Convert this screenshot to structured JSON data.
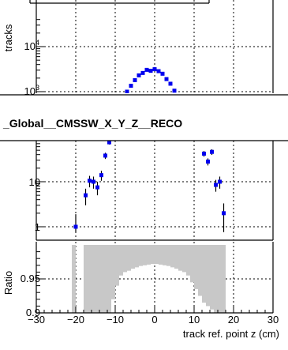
{
  "title": "_Global__CMSSW_X_Y_Z__RECO",
  "top_panel": {
    "ylabel": "tracks",
    "ytick_labels": [
      {
        "base": "10",
        "exp": "4",
        "value": 10000
      },
      {
        "base": "10",
        "exp": "3",
        "value": 1000
      }
    ]
  },
  "mid_panel": {
    "ytick_labels": [
      {
        "text": "10",
        "value": 10
      },
      {
        "text": "1",
        "value": 1
      }
    ]
  },
  "ratio_panel": {
    "ylabel": "Ratio",
    "ytick_labels": [
      {
        "text": "0.95",
        "value": 0.95
      },
      {
        "text": "0.9",
        "value": 0.9
      }
    ]
  },
  "xaxis": {
    "label": "track ref. point z (cm)",
    "tick_labels": [
      "−30",
      "−20",
      "−10",
      "0",
      "10",
      "20",
      "30"
    ],
    "tick_values": [
      -30,
      -20,
      -10,
      0,
      10,
      20,
      30
    ]
  },
  "colors": {
    "points": "#0000ee",
    "ratio_fill": "#c8c8c8"
  },
  "chart_data": [
    {
      "type": "scatter",
      "panel": "top",
      "ylabel": "tracks",
      "yscale": "log",
      "xlim": [
        -30,
        30
      ],
      "ylim": [
        700,
        70000
      ],
      "grid": true,
      "x": [
        -7,
        -6,
        -5,
        -4,
        -3,
        -2,
        -1,
        0,
        1,
        2,
        3,
        4,
        5
      ],
      "y": [
        1000,
        1350,
        1800,
        2300,
        2600,
        3050,
        2900,
        3150,
        2850,
        2500,
        1900,
        1500,
        1050
      ]
    },
    {
      "type": "scatter",
      "panel": "middle",
      "yscale": "log",
      "xlim": [
        -30,
        30
      ],
      "ylim": [
        0.75,
        120
      ],
      "grid": true,
      "x": [
        -20,
        -17.5,
        -16.5,
        -15.5,
        -14.5,
        -13.5,
        -12.5,
        -11.5,
        12.5,
        13.5,
        14.5,
        15.5,
        16.5,
        17.5
      ],
      "y": [
        1.0,
        5.0,
        10.5,
        10.0,
        7.5,
        14.0,
        38.0,
        75.0,
        42.0,
        28.0,
        46.0,
        8.5,
        10.0,
        2.0
      ],
      "yerr": [
        0.9,
        2.0,
        3.0,
        3.0,
        2.5,
        3.5,
        6.0,
        8.0,
        6.0,
        5.0,
        6.5,
        2.5,
        3.0,
        1.3
      ]
    },
    {
      "type": "area",
      "panel": "ratio",
      "ylabel": "Ratio",
      "xlim": [
        -30,
        30
      ],
      "ylim": [
        0.9,
        1.0
      ],
      "grid": true,
      "bin_edges": [
        -21,
        -20,
        -18,
        -17,
        -16,
        -15,
        -14,
        -13,
        -12,
        -11,
        -10,
        -9,
        -8,
        -7,
        -6,
        -5,
        -4,
        -3,
        -2,
        -1,
        0,
        1,
        2,
        3,
        4,
        5,
        6,
        7,
        8,
        9,
        10,
        11,
        12,
        13,
        14,
        15,
        16,
        17,
        18
      ],
      "values": [
        0.9,
        1.0,
        0.9,
        0.9,
        0.9,
        0.9,
        0.9,
        0.9,
        0.9,
        0.92,
        0.94,
        0.955,
        0.96,
        0.962,
        0.965,
        0.967,
        0.969,
        0.97,
        0.971,
        0.972,
        0.972,
        0.971,
        0.97,
        0.969,
        0.967,
        0.965,
        0.962,
        0.96,
        0.955,
        0.945,
        0.935,
        0.925,
        0.915,
        0.91,
        0.905,
        0.9,
        0.9,
        0.9
      ],
      "baseline": 1.0
    }
  ]
}
